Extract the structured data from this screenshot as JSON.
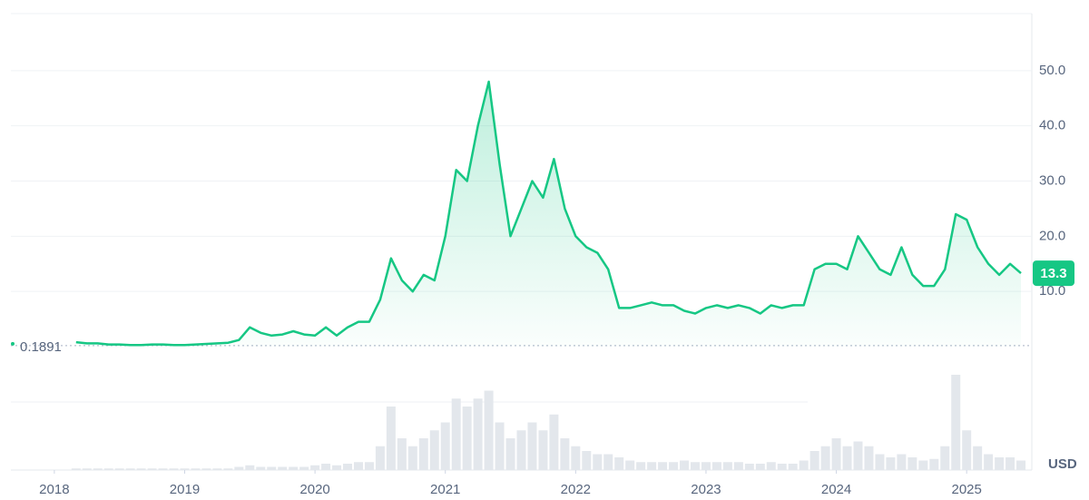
{
  "chart_data": {
    "type": "line",
    "currency": "USD",
    "color": "#16c784",
    "start_price": 0.1891,
    "current_price": 13.3,
    "x": [
      "2018-03",
      "2018-04",
      "2018-05",
      "2018-06",
      "2018-07",
      "2018-08",
      "2018-09",
      "2018-10",
      "2018-11",
      "2018-12",
      "2019-01",
      "2019-02",
      "2019-03",
      "2019-04",
      "2019-05",
      "2019-06",
      "2019-07",
      "2019-08",
      "2019-09",
      "2019-10",
      "2019-11",
      "2019-12",
      "2020-01",
      "2020-02",
      "2020-03",
      "2020-04",
      "2020-05",
      "2020-06",
      "2020-07",
      "2020-08",
      "2020-09",
      "2020-10",
      "2020-11",
      "2020-12",
      "2021-01",
      "2021-02",
      "2021-03",
      "2021-04",
      "2021-05",
      "2021-06",
      "2021-07",
      "2021-08",
      "2021-09",
      "2021-10",
      "2021-11",
      "2021-12",
      "2022-01",
      "2022-02",
      "2022-03",
      "2022-04",
      "2022-05",
      "2022-06",
      "2022-07",
      "2022-08",
      "2022-09",
      "2022-10",
      "2022-11",
      "2022-12",
      "2023-01",
      "2023-02",
      "2023-03",
      "2023-04",
      "2023-05",
      "2023-06",
      "2023-07",
      "2023-08",
      "2023-09",
      "2023-10",
      "2023-11",
      "2023-12",
      "2024-01",
      "2024-02",
      "2024-03",
      "2024-04",
      "2024-05",
      "2024-06",
      "2024-07",
      "2024-08",
      "2024-09",
      "2024-10",
      "2024-11",
      "2024-12",
      "2025-01",
      "2025-02",
      "2025-03",
      "2025-04",
      "2025-05",
      "2025-06"
    ],
    "values": [
      0.8,
      0.6,
      0.6,
      0.4,
      0.4,
      0.3,
      0.3,
      0.4,
      0.4,
      0.3,
      0.3,
      0.4,
      0.5,
      0.6,
      0.7,
      1.2,
      3.5,
      2.5,
      2.0,
      2.2,
      2.8,
      2.2,
      2.0,
      3.5,
      2.0,
      3.5,
      4.5,
      4.5,
      8.5,
      16,
      12,
      10,
      13,
      12,
      20,
      32,
      30,
      40,
      48,
      33,
      20,
      25,
      30,
      27,
      34,
      25,
      20,
      18,
      17,
      14,
      7,
      7,
      7.5,
      8,
      7.5,
      7.5,
      6.5,
      6,
      7,
      7.5,
      7,
      7.5,
      7,
      6,
      7.5,
      7,
      7.5,
      7.5,
      14,
      15,
      15,
      14,
      20,
      17,
      14,
      13,
      18,
      13,
      11,
      11,
      14,
      24,
      23,
      18,
      15,
      13,
      15,
      13.3
    ],
    "volume": [
      1,
      1,
      1,
      1,
      1,
      1,
      1,
      1,
      1,
      1,
      1,
      1,
      1,
      1,
      1,
      2,
      3,
      2,
      2,
      2,
      2,
      2,
      3,
      4,
      3,
      4,
      5,
      5,
      15,
      40,
      20,
      15,
      20,
      25,
      30,
      45,
      40,
      45,
      50,
      30,
      20,
      25,
      30,
      25,
      35,
      20,
      15,
      12,
      10,
      10,
      8,
      6,
      5,
      5,
      5,
      5,
      6,
      5,
      5,
      5,
      5,
      5,
      4,
      4,
      5,
      4,
      4,
      6,
      12,
      15,
      20,
      15,
      18,
      15,
      10,
      8,
      10,
      8,
      6,
      7,
      15,
      60,
      25,
      15,
      10,
      8,
      8,
      6
    ],
    "xlim": [
      "2017-09",
      "2025-07"
    ],
    "xticks": [
      "2018",
      "2019",
      "2020",
      "2021",
      "2022",
      "2023",
      "2024",
      "2025"
    ],
    "ylim": [
      0,
      60
    ],
    "yticks": [
      {
        "value": 10,
        "label": "10.0"
      },
      {
        "value": 20,
        "label": "20.0"
      },
      {
        "value": 30,
        "label": "30.0"
      },
      {
        "value": 40,
        "label": "40.0"
      },
      {
        "value": 50,
        "label": "50.0"
      }
    ],
    "grid": true
  }
}
